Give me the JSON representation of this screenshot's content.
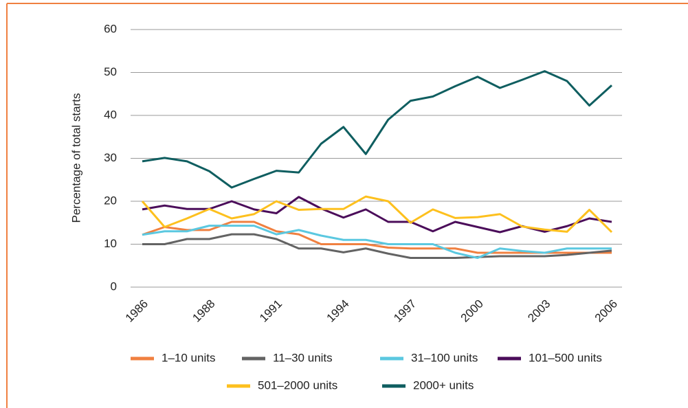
{
  "chart_data": {
    "type": "line",
    "y_label": "Percentage of total starts",
    "categories": [
      "1986",
      null,
      null,
      "1988",
      null,
      null,
      "1991",
      null,
      null,
      "1994",
      null,
      null,
      "1997",
      null,
      null,
      "2000",
      null,
      null,
      "2003",
      null,
      null,
      "2006"
    ],
    "ylim": [
      0,
      60
    ],
    "yticks": [
      0,
      10,
      20,
      30,
      40,
      50,
      60
    ],
    "grid": true,
    "series": [
      {
        "name": "1–10 units",
        "color": "#f08040",
        "values": [
          12.2,
          14,
          13.3,
          13.3,
          15.2,
          15.2,
          13,
          12.3,
          10,
          10,
          10,
          9.2,
          9,
          9,
          9,
          8,
          8,
          8,
          8,
          8,
          8,
          8
        ]
      },
      {
        "name": "11–30 units",
        "color": "#636363",
        "values": [
          10,
          10,
          11.2,
          11.2,
          12.3,
          12.3,
          11.2,
          9,
          9,
          8.1,
          9,
          7.8,
          6.8,
          6.8,
          6.8,
          7,
          7.2,
          7.2,
          7.2,
          7.5,
          8,
          8.5
        ]
      },
      {
        "name": "31–100 units",
        "color": "#5bc8e0",
        "values": [
          12.2,
          13,
          13,
          14.3,
          14.3,
          14.3,
          12.3,
          13.3,
          12,
          11,
          11,
          10,
          10,
          10,
          8,
          6.8,
          9,
          8.4,
          8,
          9,
          9,
          9
        ]
      },
      {
        "name": "101–500 units",
        "color": "#4b0d5a",
        "values": [
          18.1,
          19,
          18.2,
          18.2,
          20,
          18.1,
          17.2,
          21,
          18.3,
          16.2,
          18.1,
          15.2,
          15.2,
          13,
          15.2,
          14,
          12.8,
          14.2,
          12.9,
          14.2,
          16,
          15.2
        ]
      },
      {
        "name": "501–2000 units",
        "color": "#fdc01e",
        "values": [
          20,
          14,
          16,
          18.2,
          16,
          17,
          20,
          18,
          18.2,
          18.2,
          21.1,
          20,
          15,
          18.1,
          16.1,
          16.3,
          17,
          14.1,
          13.4,
          12.9,
          18,
          12.8
        ]
      },
      {
        "name": "2000+ units",
        "color": "#0f5e60",
        "values": [
          29.3,
          30.1,
          29.3,
          27,
          23.2,
          25.2,
          27.1,
          26.7,
          33.4,
          37.3,
          31,
          39,
          43.4,
          44.4,
          46.8,
          49,
          46.4,
          48.3,
          50.3,
          48,
          42.3,
          47
        ]
      }
    ]
  }
}
